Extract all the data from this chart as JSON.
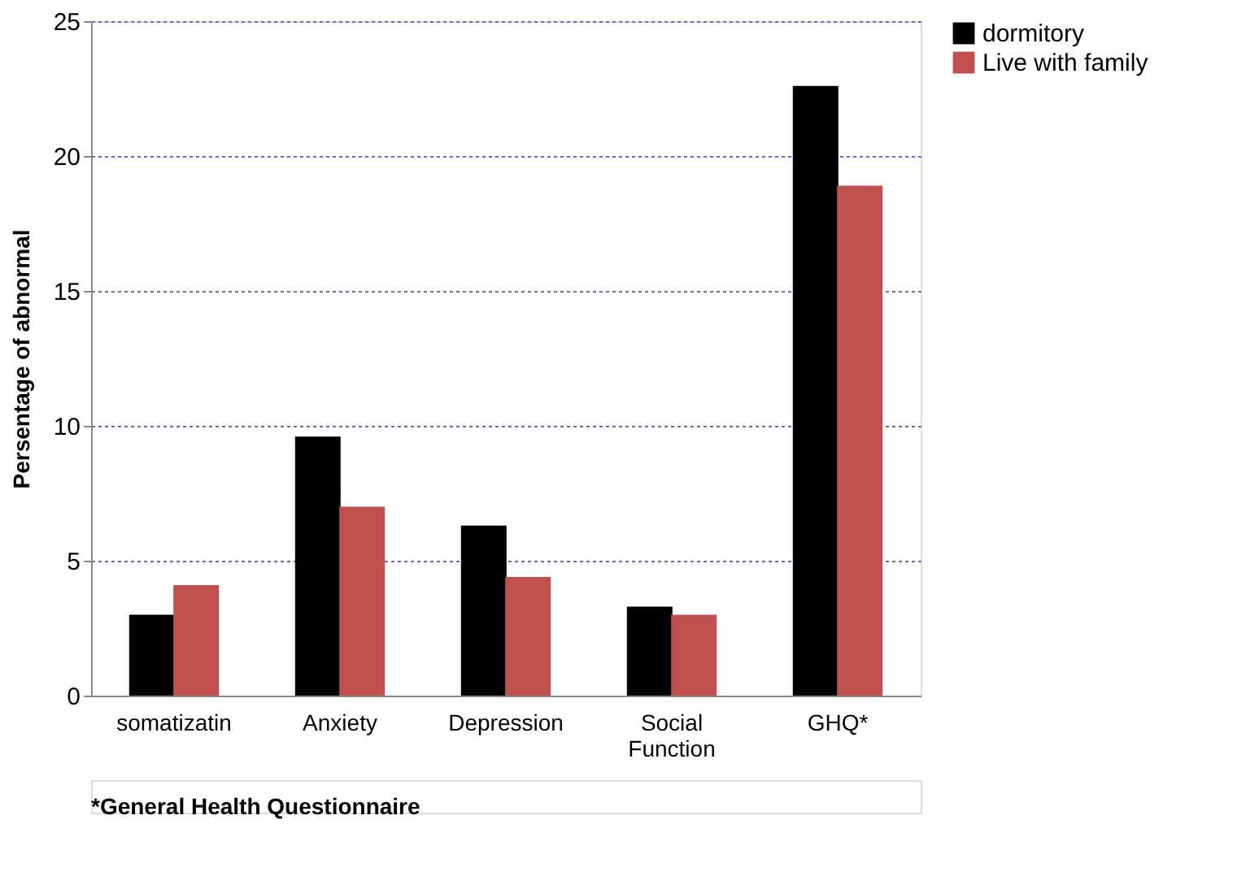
{
  "chart_data": {
    "type": "bar",
    "ylabel": "Persentage of abnormal",
    "categories": [
      "somatizatin",
      "Anxiety",
      "Depression",
      "Social Function",
      "GHQ*"
    ],
    "series": [
      {
        "name": "dormitory",
        "color": "#000000",
        "values": [
          3.0,
          9.6,
          6.3,
          3.3,
          22.6
        ]
      },
      {
        "name": "Live with family",
        "color": "#c0504d",
        "values": [
          4.1,
          7.0,
          4.4,
          3.0,
          18.9
        ]
      }
    ],
    "ylim": [
      0,
      25
    ],
    "yticks": [
      0,
      5,
      10,
      15,
      20,
      25
    ],
    "grid": "y",
    "legend": "right",
    "annotations": [
      "*General Health Questionnaire"
    ]
  }
}
